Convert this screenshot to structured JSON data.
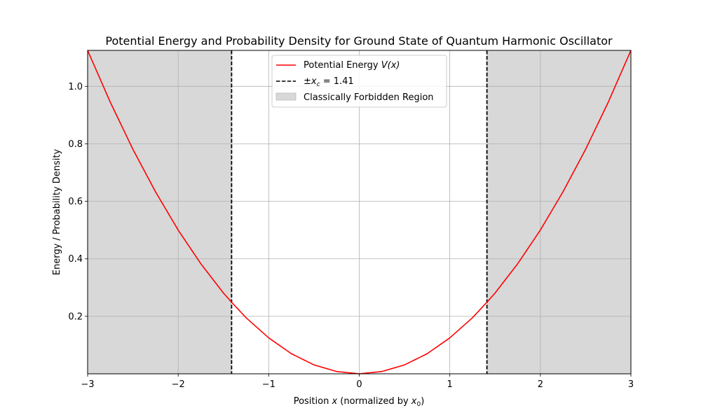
{
  "chart_data": {
    "type": "line",
    "title": "Potential Energy and Probability Density for Ground State of Quantum Harmonic Oscillator",
    "xlabel_prefix": "Position ",
    "xlabel_var": "x",
    "xlabel_mid": " (normalized by ",
    "xlabel_sub_var": "x",
    "xlabel_sub": "0",
    "xlabel_suffix": ")",
    "ylabel": "Energy / Probability Density",
    "xlim": [
      -3,
      3
    ],
    "ylim": [
      0,
      1.125
    ],
    "xticks": [
      -3,
      -2,
      -1,
      0,
      1,
      2,
      3
    ],
    "xtick_labels": [
      "−3",
      "−2",
      "−1",
      "0",
      "1",
      "2",
      "3"
    ],
    "yticks": [
      0.2,
      0.4,
      0.6,
      0.8,
      1.0
    ],
    "ytick_labels": [
      "0.2",
      "0.4",
      "0.6",
      "0.8",
      "1.0"
    ],
    "grid": true,
    "legend_position": "top-center",
    "series": [
      {
        "name_prefix": "Potential Energy ",
        "name_math": "V(x)",
        "color": "#ff0000",
        "style": "solid",
        "x": [
          -3.0,
          -2.75,
          -2.5,
          -2.25,
          -2.0,
          -1.75,
          -1.5,
          -1.41,
          -1.25,
          -1.0,
          -0.75,
          -0.5,
          -0.25,
          0.0,
          0.25,
          0.5,
          0.75,
          1.0,
          1.25,
          1.41,
          1.5,
          1.75,
          2.0,
          2.25,
          2.5,
          2.75,
          3.0
        ],
        "y": [
          1.125,
          0.945,
          0.781,
          0.633,
          0.5,
          0.383,
          0.281,
          0.249,
          0.195,
          0.125,
          0.07,
          0.031,
          0.008,
          0.0,
          0.008,
          0.031,
          0.07,
          0.125,
          0.195,
          0.249,
          0.281,
          0.383,
          0.5,
          0.633,
          0.781,
          0.945,
          1.125
        ]
      }
    ],
    "turning_points": {
      "label_prefix": "±",
      "label_var": "x",
      "label_sub": "c",
      "label_suffix": " = 1.41",
      "x_values": [
        -1.41,
        1.41
      ],
      "color": "#000000",
      "style": "dashed"
    },
    "forbidden_region": {
      "label": "Classically Forbidden Region",
      "ranges": [
        [
          -3,
          -1.41
        ],
        [
          1.41,
          3
        ]
      ],
      "color": "#d8d8d8"
    }
  }
}
